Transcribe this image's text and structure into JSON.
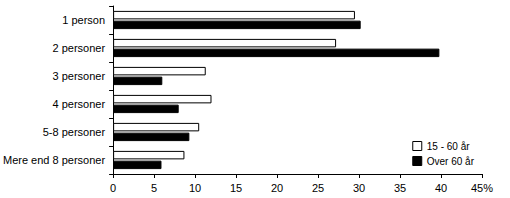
{
  "chart_data": {
    "type": "bar",
    "orientation": "horizontal",
    "categories": [
      "1 person",
      "2 personer",
      "3 personer",
      "4 personer",
      "5-8 personer",
      "Mere end 8 personer"
    ],
    "series": [
      {
        "name": "15 - 60 år",
        "color": "#ffffff",
        "values": [
          29.5,
          27.2,
          11.3,
          12.0,
          10.5,
          8.7
        ]
      },
      {
        "name": "Over 60 år",
        "color": "#000000",
        "values": [
          30.2,
          39.8,
          6.0,
          8.0,
          9.3,
          5.9
        ]
      }
    ],
    "xlim": [
      0,
      45
    ],
    "xticks": [
      0,
      5,
      10,
      15,
      20,
      25,
      30,
      35,
      40,
      {
        "value": 45,
        "label": "45%"
      }
    ],
    "grid": false,
    "legend": "lower right"
  }
}
